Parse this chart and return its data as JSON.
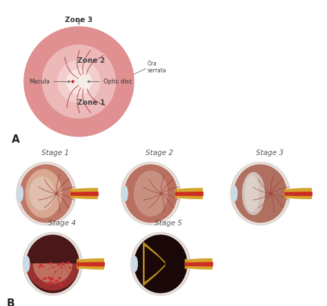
{
  "bg_color": "#ffffff",
  "zone_outer_color": "#e09090",
  "zone_mid_color": "#edb8b8",
  "zone_inner_color": "#f2cece",
  "zone_center_color": "#f8e8e4",
  "optic_disc_color": "#f5ece8",
  "macula_dot_color": "#cc2222",
  "vessel_color": "#a03030",
  "label_A": "A",
  "label_B": "B",
  "zone1_label": "Zone 1",
  "zone2_label": "Zone 2",
  "zone3_label": "Zone 3",
  "macula_label": "Macula",
  "optic_disc_label": "Optic disc",
  "ora_serrata_label": "Ora\nserrata",
  "stages": [
    "Stage 1",
    "Stage 2",
    "Stage 3",
    "Stage 4",
    "Stage 5"
  ],
  "eye_shell_color": "#ddd5d0",
  "eye_shell_edge": "#c8c0bc",
  "eye_sclera_color": "#ede6e2",
  "eye_choroid_color": "#c07060",
  "eye_retina1_color": "#d08878",
  "eye_retina2_color": "#c07868",
  "eye_vitreous1": "#e0b8a8",
  "eye_vitreous2": "#d8a898",
  "eye_dark_color": "#2a1010",
  "eye_yellow_color": "#d4a020",
  "eye_yellow_dark": "#c09018",
  "eye_red_center": "#cc2222",
  "eye_lens_color": "#c8dce8",
  "eye_lens_edge": "#a0c0d8",
  "stage3_white": "#d8ccc4",
  "stage4_dark": "#4a1818",
  "stage5_dark": "#1a0808",
  "dot_color": "#cc3030",
  "text_color": "#555555",
  "label_color": "#222222"
}
